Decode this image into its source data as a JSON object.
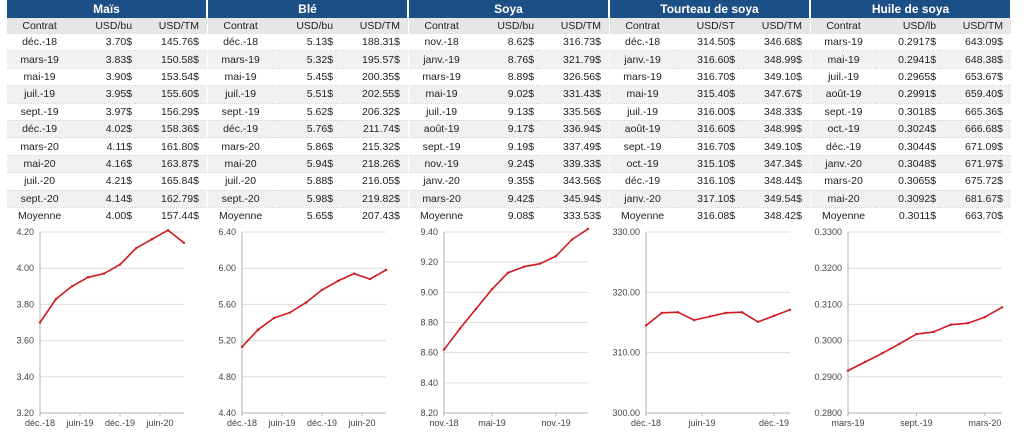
{
  "tables": [
    {
      "title": "Maïs",
      "headers": [
        "Contrat",
        "USD/bu",
        "USD/TM"
      ],
      "rows": [
        [
          "déc.-18",
          "3.70$",
          "145.76$"
        ],
        [
          "mars-19",
          "3.83$",
          "150.58$"
        ],
        [
          "mai-19",
          "3.90$",
          "153.54$"
        ],
        [
          "juil.-19",
          "3.95$",
          "155.60$"
        ],
        [
          "sept.-19",
          "3.97$",
          "156.29$"
        ],
        [
          "déc.-19",
          "4.02$",
          "158.36$"
        ],
        [
          "mars-20",
          "4.11$",
          "161.80$"
        ],
        [
          "mai-20",
          "4.16$",
          "163.87$"
        ],
        [
          "juil.-20",
          "4.21$",
          "165.84$"
        ],
        [
          "sept.-20",
          "4.14$",
          "162.79$"
        ]
      ],
      "average": [
        "Moyenne",
        "4.00$",
        "157.44$"
      ]
    },
    {
      "title": "Blé",
      "headers": [
        "Contrat",
        "USD/bu",
        "USD/TM"
      ],
      "rows": [
        [
          "déc.-18",
          "5.13$",
          "188.31$"
        ],
        [
          "mars-19",
          "5.32$",
          "195.57$"
        ],
        [
          "mai-19",
          "5.45$",
          "200.35$"
        ],
        [
          "juil.-19",
          "5.51$",
          "202.55$"
        ],
        [
          "sept.-19",
          "5.62$",
          "206.32$"
        ],
        [
          "déc.-19",
          "5.76$",
          "211.74$"
        ],
        [
          "mars-20",
          "5.86$",
          "215.32$"
        ],
        [
          "mai-20",
          "5.94$",
          "218.26$"
        ],
        [
          "juil.-20",
          "5.88$",
          "216.05$"
        ],
        [
          "sept.-20",
          "5.98$",
          "219.82$"
        ]
      ],
      "average": [
        "Moyenne",
        "5.65$",
        "207.43$"
      ]
    },
    {
      "title": "Soya",
      "headers": [
        "Contrat",
        "USD/bu",
        "USD/TM"
      ],
      "rows": [
        [
          "nov.-18",
          "8.62$",
          "316.73$"
        ],
        [
          "janv.-19",
          "8.76$",
          "321.79$"
        ],
        [
          "mars-19",
          "8.89$",
          "326.56$"
        ],
        [
          "mai-19",
          "9.02$",
          "331.43$"
        ],
        [
          "juil.-19",
          "9.13$",
          "335.56$"
        ],
        [
          "août-19",
          "9.17$",
          "336.94$"
        ],
        [
          "sept.-19",
          "9.19$",
          "337.49$"
        ],
        [
          "nov.-19",
          "9.24$",
          "339.33$"
        ],
        [
          "janv.-20",
          "9.35$",
          "343.56$"
        ],
        [
          "mars-20",
          "9.42$",
          "345.94$"
        ]
      ],
      "average": [
        "Moyenne",
        "9.08$",
        "333.53$"
      ]
    },
    {
      "title": "Tourteau de soya",
      "headers": [
        "Contrat",
        "USD/ST",
        "USD/TM"
      ],
      "rows": [
        [
          "déc.-18",
          "314.50$",
          "346.68$"
        ],
        [
          "janv.-19",
          "316.60$",
          "348.99$"
        ],
        [
          "mars-19",
          "316.70$",
          "349.10$"
        ],
        [
          "mai-19",
          "315.40$",
          "347.67$"
        ],
        [
          "juil.-19",
          "316.00$",
          "348.33$"
        ],
        [
          "août-19",
          "316.60$",
          "348.99$"
        ],
        [
          "sept.-19",
          "316.70$",
          "349.10$"
        ],
        [
          "oct.-19",
          "315.10$",
          "347.34$"
        ],
        [
          "déc.-19",
          "316.10$",
          "348.44$"
        ],
        [
          "janv.-20",
          "317.10$",
          "349.54$"
        ]
      ],
      "average": [
        "Moyenne",
        "316.08$",
        "348.42$"
      ]
    },
    {
      "title": "Huile de soya",
      "headers": [
        "Contrat",
        "USD/lb",
        "USD/TM"
      ],
      "rows": [
        [
          "mars-19",
          "0.2917$",
          "643.09$"
        ],
        [
          "mai-19",
          "0.2941$",
          "648.38$"
        ],
        [
          "juil.-19",
          "0.2965$",
          "653.67$"
        ],
        [
          "août-19",
          "0.2991$",
          "659.40$"
        ],
        [
          "sept.-19",
          "0.3018$",
          "665.36$"
        ],
        [
          "oct.-19",
          "0.3024$",
          "666.68$"
        ],
        [
          "déc.-19",
          "0.3044$",
          "671.09$"
        ],
        [
          "janv.-20",
          "0.3048$",
          "671.97$"
        ],
        [
          "mars-20",
          "0.3065$",
          "675.72$"
        ],
        [
          "mai-20",
          "0.3092$",
          "681.67$"
        ]
      ],
      "average": [
        "Moyenne",
        "0.3011$",
        "663.70$"
      ]
    }
  ],
  "chart_data": [
    {
      "type": "line",
      "series_color": "#d0181e",
      "x": [
        "déc.-18",
        "mars-19",
        "mai-19",
        "juil.-19",
        "sept.-19",
        "déc.-19",
        "mars-20",
        "mai-20",
        "juil.-20",
        "sept.-20"
      ],
      "values": [
        3.7,
        3.83,
        3.9,
        3.95,
        3.97,
        4.02,
        4.11,
        4.16,
        4.21,
        4.14
      ],
      "ylim": [
        3.2,
        4.2
      ],
      "yticks": [
        "3.20",
        "3.40",
        "3.60",
        "3.80",
        "4.00",
        "4.20"
      ],
      "xticks": [
        {
          "label": "déc.-18",
          "i": 0
        },
        {
          "label": "juin-19",
          "i": 2.5
        },
        {
          "label": "déc.-19",
          "i": 5
        },
        {
          "label": "juin-20",
          "i": 7.5
        }
      ],
      "grid": "horizontal"
    },
    {
      "type": "line",
      "series_color": "#d0181e",
      "x": [
        "déc.-18",
        "mars-19",
        "mai-19",
        "juil.-19",
        "sept.-19",
        "déc.-19",
        "mars-20",
        "mai-20",
        "juil.-20",
        "sept.-20"
      ],
      "values": [
        5.13,
        5.32,
        5.45,
        5.51,
        5.62,
        5.76,
        5.86,
        5.94,
        5.88,
        5.98
      ],
      "ylim": [
        4.4,
        6.4
      ],
      "yticks": [
        "4.40",
        "4.80",
        "5.20",
        "5.60",
        "6.00",
        "6.40"
      ],
      "xticks": [
        {
          "label": "déc.-18",
          "i": 0
        },
        {
          "label": "juin-19",
          "i": 2.5
        },
        {
          "label": "déc.-19",
          "i": 5
        },
        {
          "label": "juin-20",
          "i": 7.5
        }
      ],
      "grid": "horizontal"
    },
    {
      "type": "line",
      "series_color": "#d0181e",
      "x": [
        "nov.-18",
        "janv.-19",
        "mars-19",
        "mai-19",
        "juil.-19",
        "août-19",
        "sept.-19",
        "nov.-19",
        "janv.-20",
        "mars-20"
      ],
      "values": [
        8.62,
        8.76,
        8.89,
        9.02,
        9.13,
        9.17,
        9.19,
        9.24,
        9.35,
        9.42
      ],
      "ylim": [
        8.2,
        9.4
      ],
      "yticks": [
        "8.20",
        "8.40",
        "8.60",
        "8.80",
        "9.00",
        "9.20",
        "9.40"
      ],
      "xticks": [
        {
          "label": "nov.-18",
          "i": 0
        },
        {
          "label": "mai-19",
          "i": 3
        },
        {
          "label": "nov.-19",
          "i": 7
        }
      ],
      "grid": "horizontal"
    },
    {
      "type": "line",
      "series_color": "#d0181e",
      "x": [
        "déc.-18",
        "janv.-19",
        "mars-19",
        "mai-19",
        "juil.-19",
        "août-19",
        "sept.-19",
        "oct.-19",
        "déc.-19",
        "janv.-20"
      ],
      "values": [
        314.5,
        316.6,
        316.7,
        315.4,
        316.0,
        316.6,
        316.7,
        315.1,
        316.1,
        317.1
      ],
      "ylim": [
        300.0,
        330.0
      ],
      "yticks": [
        "300.00",
        "310.00",
        "320.00",
        "330.00"
      ],
      "xticks": [
        {
          "label": "déc.-18",
          "i": 0
        },
        {
          "label": "juin-19",
          "i": 3.5
        },
        {
          "label": "déc.-19",
          "i": 8
        }
      ],
      "grid": "horizontal"
    },
    {
      "type": "line",
      "series_color": "#d0181e",
      "x": [
        "mars-19",
        "mai-19",
        "juil.-19",
        "août-19",
        "sept.-19",
        "oct.-19",
        "déc.-19",
        "janv.-20",
        "mars-20",
        "mai-20"
      ],
      "values": [
        0.2917,
        0.2941,
        0.2965,
        0.2991,
        0.3018,
        0.3024,
        0.3044,
        0.3048,
        0.3065,
        0.3092
      ],
      "ylim": [
        0.28,
        0.33
      ],
      "yticks": [
        "0.2800",
        "0.2900",
        "0.3000",
        "0.3100",
        "0.3200",
        "0.3300"
      ],
      "xticks": [
        {
          "label": "mars-19",
          "i": 0
        },
        {
          "label": "sept.-19",
          "i": 4
        },
        {
          "label": "mars-20",
          "i": 8
        }
      ],
      "grid": "horizontal"
    }
  ]
}
